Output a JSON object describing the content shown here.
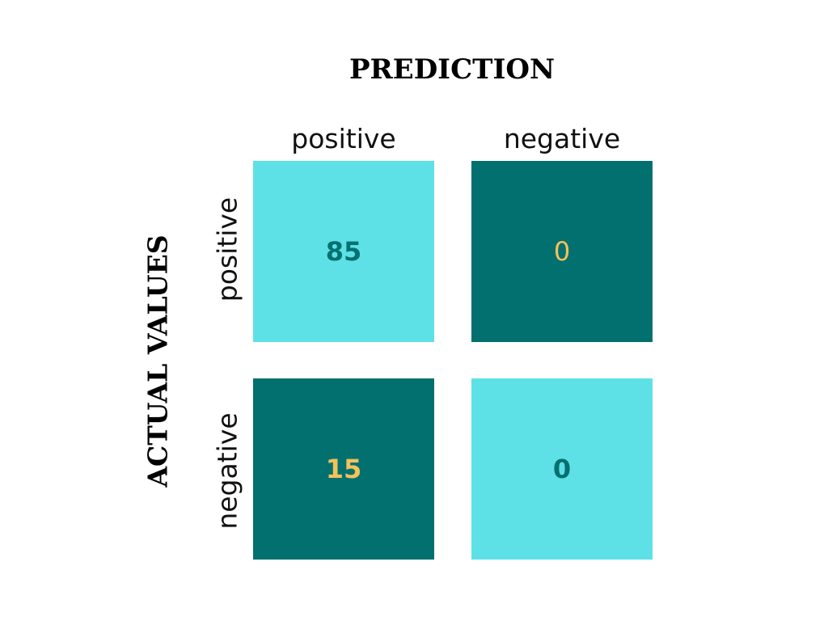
{
  "chart_data": {
    "type": "heatmap",
    "title": "PREDICTION",
    "xlabel": "PREDICTION",
    "ylabel": "ACTUAL VALUES",
    "columns": [
      "positive",
      "negative"
    ],
    "rows": [
      "positive",
      "negative"
    ],
    "values": [
      [
        85,
        0
      ],
      [
        15,
        0
      ]
    ],
    "cells": [
      [
        {
          "value": "85",
          "bold": true
        },
        {
          "value": "0",
          "bold": false
        }
      ],
      [
        {
          "value": "15",
          "bold": true
        },
        {
          "value": "0",
          "bold": true
        }
      ]
    ],
    "grid": false,
    "legend": "none"
  },
  "colors": {
    "light_cell": "#5de1e6",
    "dark_cell": "#01706f",
    "teal_text": "#04706f",
    "gold_text": "#f4c15a"
  },
  "cell_shading": [
    [
      "light",
      "dark"
    ],
    [
      "dark",
      "light"
    ]
  ]
}
